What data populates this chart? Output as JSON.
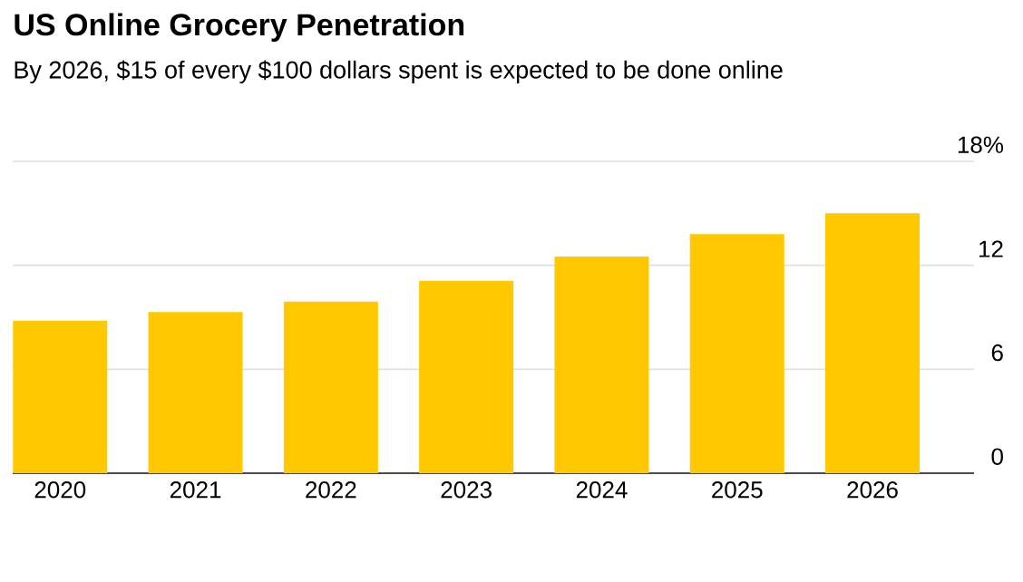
{
  "chart_data": {
    "type": "bar",
    "title": "US Online Grocery Penetration",
    "subtitle": "By 2026, $15 of every $100 dollars spent is expected to be done online",
    "categories": [
      "2020",
      "2021",
      "2022",
      "2023",
      "2024",
      "2025",
      "2026"
    ],
    "values": [
      8.8,
      9.3,
      9.9,
      11.1,
      12.5,
      13.8,
      15.0
    ],
    "color": "#ffc800",
    "ylim": [
      0,
      18
    ],
    "yticks": [
      0,
      6,
      12,
      {
        "value": 18,
        "label": "18%"
      }
    ],
    "grid": "y"
  }
}
